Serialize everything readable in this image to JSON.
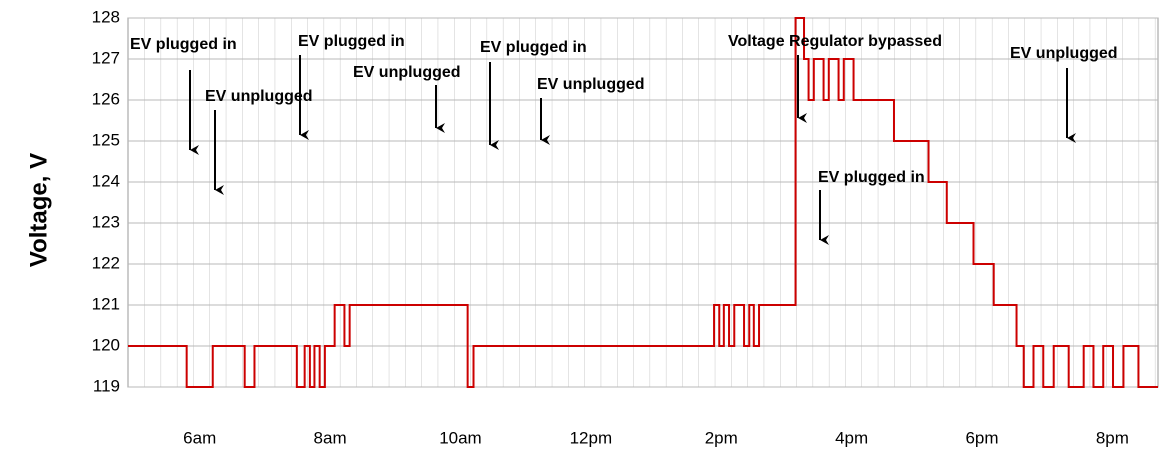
{
  "chart_data": {
    "type": "line",
    "y_label": "Voltage, V",
    "color": "#cc0000",
    "grid": true,
    "xlim": [
      4.9,
      20.7
    ],
    "xticks": [
      {
        "value": 6,
        "label": "6am"
      },
      {
        "value": 8,
        "label": "8am"
      },
      {
        "value": 10,
        "label": "10am"
      },
      {
        "value": 12,
        "label": "12pm"
      },
      {
        "value": 14,
        "label": "2pm"
      },
      {
        "value": 16,
        "label": "4pm"
      },
      {
        "value": 18,
        "label": "6pm"
      },
      {
        "value": 20,
        "label": "8pm"
      }
    ],
    "ylim": [
      119,
      128
    ],
    "yticks": [
      119,
      120,
      121,
      122,
      123,
      124,
      125,
      126,
      127,
      128
    ],
    "annotations": [
      "EV plugged in",
      "EV unplugged",
      "EV plugged in",
      "EV unplugged",
      "EV plugged in",
      "EV unplugged",
      "Voltage Regulator bypassed",
      "EV plugged in",
      "EV unplugged"
    ],
    "x": [
      4.9,
      5.8,
      5.8,
      6.2,
      6.2,
      6.69,
      6.69,
      6.84,
      6.84,
      7.49,
      7.49,
      7.61,
      7.61,
      7.69,
      7.69,
      7.76,
      7.76,
      7.84,
      7.84,
      7.92,
      7.92,
      8.07,
      8.07,
      8.22,
      8.22,
      8.3,
      8.3,
      10.11,
      10.11,
      10.2,
      10.2,
      13.89,
      13.89,
      13.97,
      13.97,
      14.04,
      14.04,
      14.12,
      14.12,
      14.2,
      14.2,
      14.35,
      14.35,
      14.43,
      14.43,
      14.5,
      14.5,
      14.58,
      14.58,
      15.14,
      15.14,
      15.27,
      15.27,
      15.34,
      15.34,
      15.42,
      15.42,
      15.57,
      15.57,
      15.65,
      15.65,
      15.8,
      15.8,
      15.88,
      15.88,
      16.03,
      16.03,
      16.65,
      16.65,
      17.18,
      17.18,
      17.46,
      17.46,
      17.87,
      17.87,
      18.18,
      18.18,
      18.53,
      18.53,
      18.64,
      18.64,
      18.79,
      18.79,
      18.94,
      18.94,
      19.1,
      19.1,
      19.33,
      19.33,
      19.56,
      19.56,
      19.71,
      19.71,
      19.86,
      19.86,
      20.01,
      20.01,
      20.17,
      20.17,
      20.4,
      20.4,
      20.7
    ],
    "values": [
      120,
      120,
      119,
      119,
      120,
      120,
      119,
      119,
      120,
      120,
      119,
      119,
      120,
      120,
      119,
      119,
      120,
      120,
      119,
      119,
      120,
      120,
      121,
      121,
      120,
      120,
      121,
      121,
      119,
      119,
      120,
      120,
      121,
      121,
      120,
      120,
      121,
      121,
      120,
      120,
      121,
      121,
      120,
      120,
      121,
      121,
      120,
      120,
      121,
      121,
      128,
      128,
      127,
      127,
      126,
      126,
      127,
      127,
      126,
      126,
      127,
      127,
      126,
      126,
      127,
      127,
      126,
      126,
      125,
      125,
      124,
      124,
      123,
      123,
      122,
      122,
      121,
      121,
      120,
      120,
      119,
      119,
      120,
      120,
      119,
      119,
      120,
      120,
      119,
      119,
      120,
      120,
      119,
      119,
      120,
      120,
      119,
      119,
      120,
      120,
      119,
      119
    ]
  }
}
